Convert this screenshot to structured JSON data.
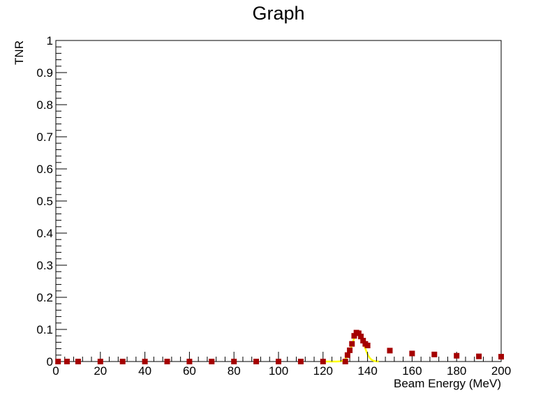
{
  "chart_data": {
    "type": "scatter",
    "title": "Graph",
    "xlabel": "Beam Energy (MeV)",
    "ylabel": "TNR",
    "xlim": [
      0,
      200
    ],
    "ylim": [
      0,
      1
    ],
    "x_ticks": [
      "0",
      "20",
      "40",
      "60",
      "80",
      "100",
      "120",
      "140",
      "160",
      "180",
      "200"
    ],
    "y_ticks": [
      "0",
      "0.1",
      "0.2",
      "0.3",
      "0.4",
      "0.5",
      "0.6",
      "0.7",
      "0.8",
      "0.9",
      "1"
    ],
    "grid": false,
    "legend": "none",
    "series": [
      {
        "marker": "square",
        "color": "#a50000",
        "x": [
          1,
          5,
          10,
          20,
          30,
          40,
          50,
          60,
          70,
          80,
          90,
          100,
          110,
          120,
          130,
          131,
          132,
          133,
          134,
          135,
          136,
          137,
          138,
          139,
          140,
          150,
          160,
          170,
          180,
          190,
          200
        ],
        "y": [
          0,
          0,
          0,
          0,
          0,
          0,
          0,
          0,
          0,
          0,
          0,
          0,
          0,
          0,
          0,
          0.02,
          0.035,
          0.055,
          0.08,
          0.09,
          0.088,
          0.078,
          0.065,
          0.055,
          0.05,
          0.034,
          0.025,
          0.022,
          0.018,
          0.016,
          0.015
        ]
      }
    ],
    "fit": {
      "type": "gaussian",
      "color": "#ffff00",
      "amplitude": 0.09,
      "mean": 135.7,
      "sigma": 2.6,
      "x_range": [
        120,
        145
      ]
    }
  }
}
